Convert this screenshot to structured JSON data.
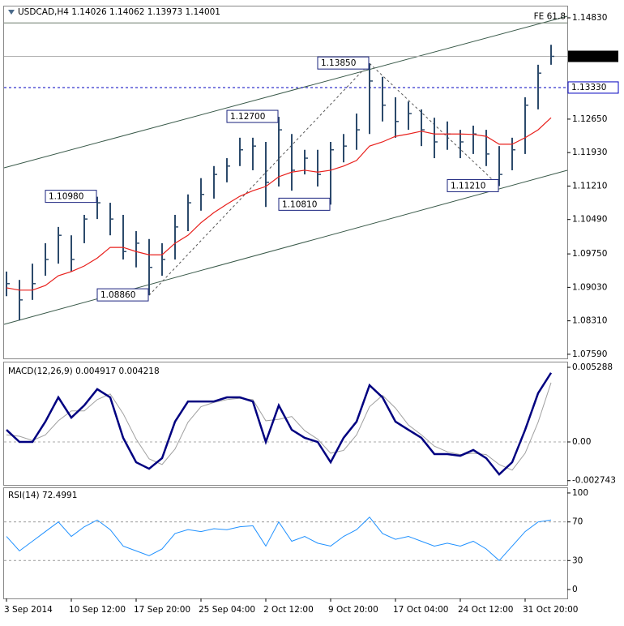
{
  "chart_data": [
    {
      "type": "ohlc",
      "title": "USDCAD,H4  1.14026 1.14062 1.13973 1.14001",
      "categories": [
        "3 Sep 2014",
        null,
        null,
        null,
        null,
        "10 Sep 12:00",
        null,
        null,
        null,
        null,
        "17 Sep 20:00",
        null,
        null,
        null,
        null,
        "25 Sep 04:00",
        null,
        null,
        null,
        null,
        "2 Oct 12:00",
        null,
        null,
        null,
        null,
        "9 Oct 20:00",
        null,
        null,
        null,
        null,
        "17 Oct 04:00",
        null,
        null,
        null,
        null,
        "24 Oct 12:00",
        null,
        null,
        null,
        null,
        "31 Oct 20:00",
        null,
        null
      ],
      "high": [
        1.0937,
        1.0919,
        1.0954,
        1.0998,
        1.1033,
        1.1015,
        1.1059,
        1.1098,
        1.1085,
        1.1059,
        1.1024,
        1.1007,
        1.0998,
        1.1059,
        1.1103,
        1.1138,
        1.1164,
        1.1181,
        1.1225,
        1.1225,
        1.1216,
        1.127,
        1.1233,
        1.1199,
        1.1199,
        1.1216,
        1.1233,
        1.1277,
        1.1385,
        1.1356,
        1.1312,
        1.1303,
        1.1286,
        1.1268,
        1.126,
        1.1242,
        1.1251,
        1.1242,
        1.1207,
        1.1225,
        1.1312,
        1.1382,
        1.1425
      ],
      "low": [
        1.0884,
        1.0832,
        1.0876,
        1.0928,
        1.0954,
        1.0937,
        1.0998,
        1.105,
        1.1015,
        1.0963,
        1.0946,
        1.0886,
        1.0928,
        1.0963,
        1.1024,
        1.1068,
        1.1094,
        1.1129,
        1.1164,
        1.1155,
        1.1076,
        1.112,
        1.1111,
        1.1146,
        1.112,
        1.1081,
        1.1172,
        1.1199,
        1.1233,
        1.126,
        1.1225,
        1.1242,
        1.1207,
        1.1181,
        1.1199,
        1.1181,
        1.119,
        1.1164,
        1.1121,
        1.1155,
        1.119,
        1.1286,
        1.1382
      ],
      "close": [
        1.0911,
        1.0876,
        1.0911,
        1.0963,
        1.1015,
        1.0963,
        1.105,
        1.1085,
        1.105,
        1.098,
        1.0998,
        1.0946,
        1.0963,
        1.1033,
        1.1085,
        1.1103,
        1.1146,
        1.1164,
        1.1199,
        1.1207,
        1.1129,
        1.1242,
        1.1155,
        1.1181,
        1.1146,
        1.1199,
        1.1207,
        1.1242,
        1.1347,
        1.1295,
        1.126,
        1.1277,
        1.1242,
        1.1216,
        1.1233,
        1.1216,
        1.1233,
        1.119,
        1.1146,
        1.1199,
        1.1295,
        1.1364,
        1.14001
      ],
      "high_labels": [
        null,
        null,
        null,
        null,
        null,
        null,
        null,
        "1.10980",
        null,
        null,
        null,
        null,
        null,
        null,
        null,
        null,
        null,
        null,
        null,
        null,
        null,
        "1.12700",
        null,
        null,
        null,
        null,
        null,
        null,
        "1.13850",
        null,
        null,
        null,
        null,
        null,
        null,
        null,
        null,
        null,
        null,
        null,
        null,
        null,
        null
      ],
      "low_labels": [
        null,
        null,
        null,
        null,
        null,
        null,
        null,
        null,
        null,
        null,
        null,
        "1.08860",
        null,
        null,
        null,
        null,
        null,
        null,
        null,
        null,
        null,
        null,
        null,
        null,
        null,
        "1.10810",
        null,
        null,
        null,
        null,
        null,
        null,
        null,
        null,
        null,
        null,
        null,
        null,
        "1.11210",
        null,
        null,
        null,
        null
      ],
      "color": "#2c4a6b",
      "ma": {
        "color": "#e8201c",
        "values": [
          1.0902,
          1.0897,
          1.0897,
          1.0907,
          1.0928,
          1.0937,
          1.0949,
          1.0966,
          1.0989,
          1.0989,
          1.098,
          1.0973,
          1.0973,
          1.0998,
          1.1015,
          1.1042,
          1.1064,
          1.1082,
          1.1099,
          1.1111,
          1.112,
          1.1141,
          1.1151,
          1.1155,
          1.1151,
          1.1155,
          1.1164,
          1.1176,
          1.1207,
          1.1216,
          1.1228,
          1.1233,
          1.1239,
          1.1233,
          1.1233,
          1.1233,
          1.1232,
          1.1228,
          1.1211,
          1.1211,
          1.1225,
          1.1242,
          1.1268
        ]
      },
      "current_price": 1.14001,
      "level": {
        "value": 1.1333,
        "label": "1.13330",
        "color": "#0000c0"
      },
      "fe": {
        "value": 1.1472,
        "label": "FE 61.8"
      },
      "ylim": [
        1.07501,
        1.15074
      ],
      "yticks": [
        {
          "value": 1.1483,
          "label": "1.14830"
        },
        {
          "value": 1.1265,
          "label": "1.12650"
        },
        {
          "value": 1.1193,
          "label": "1.11930"
        },
        {
          "value": 1.1121,
          "label": "1.11210"
        },
        {
          "value": 1.1049,
          "label": "1.10490"
        },
        {
          "value": 1.0975,
          "label": "1.09750"
        },
        {
          "value": 1.0903,
          "label": "1.09030"
        },
        {
          "value": 1.0831,
          "label": "1.08310"
        },
        {
          "value": 1.0759,
          "label": "1.07590"
        }
      ]
    },
    {
      "type": "macd",
      "title": "MACD(12,26,9) 0.004917 0.004218",
      "series": [
        {
          "color": "#000080",
          "values": [
            0.00086,
            0,
            0,
            0.00144,
            0.00316,
            0.00172,
            0.00259,
            0.00374,
            0.00316,
            0.00029,
            -0.00144,
            -0.0019,
            -0.00115,
            0.00144,
            0.00287,
            0.00287,
            0.00287,
            0.00316,
            0.00316,
            0.00287,
            0,
            0.00259,
            0.00086,
            0.00029,
            0,
            -0.00144,
            0.00029,
            0.00144,
            0.00402,
            0.00316,
            0.00144,
            0.00086,
            0.00029,
            -0.00086,
            -0.00086,
            -0.00098,
            -0.00057,
            -0.00115,
            -0.0023,
            -0.00144,
            0.00086,
            0.00345,
            0.0049
          ]
        },
        {
          "color": "#a0a0a0",
          "values": [
            0.0005,
            0.0004,
            0.0001,
            0.0005,
            0.0015,
            0.0022,
            0.0022,
            0.003,
            0.0034,
            0.002,
            0.0002,
            -0.0012,
            -0.0016,
            -0.0005,
            0.0014,
            0.0025,
            0.0028,
            0.003,
            0.0031,
            0.003,
            0.0015,
            0.0016,
            0.0018,
            0.0008,
            0.0002,
            -0.0008,
            -0.0006,
            0.0005,
            0.0025,
            0.0033,
            0.0024,
            0.0012,
            0.0005,
            -0.0003,
            -0.0007,
            -0.0009,
            -0.0008,
            -0.0009,
            -0.0016,
            -0.002,
            -0.0008,
            0.0014,
            0.0042
          ]
        }
      ],
      "ylim": [
        -0.003046,
        0.005633
      ],
      "yticks": [
        0.005288,
        {
          "value": 0,
          "label": "0.00"
        },
        -0.002743
      ]
    },
    {
      "type": "rsi",
      "title": "RSI(14) 72.4991",
      "color": "#1e90ff",
      "values": [
        55,
        40,
        50,
        60,
        70,
        55,
        65,
        72,
        62,
        45,
        40,
        35,
        42,
        58,
        62,
        60,
        63,
        62,
        65,
        66,
        45,
        70,
        50,
        55,
        48,
        45,
        55,
        62,
        75,
        58,
        52,
        55,
        50,
        45,
        48,
        45,
        50,
        42,
        30,
        45,
        60,
        70,
        72
      ],
      "levels": [
        70,
        30
      ],
      "ylim": [
        -9.24,
        105
      ],
      "yticks": [
        100,
        70,
        30,
        0
      ]
    }
  ]
}
